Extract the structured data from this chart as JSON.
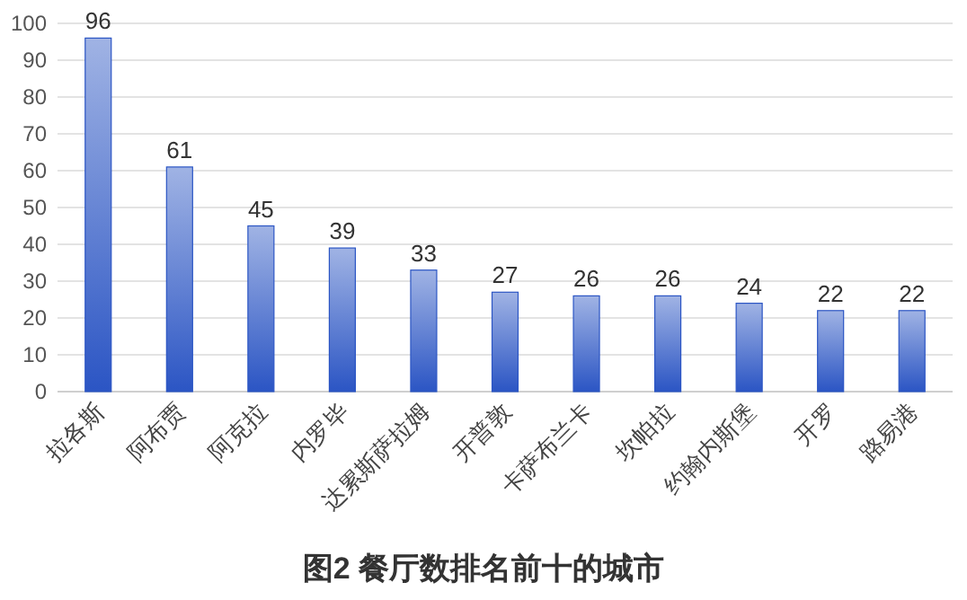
{
  "chart_data": {
    "type": "bar",
    "title": "图2 餐厅数排名前十的城市",
    "categories": [
      "拉各斯",
      "阿布贾",
      "阿克拉",
      "内罗毕",
      "达累斯萨拉姆",
      "开普敦",
      "卡萨布兰卡",
      "坎帕拉",
      "约翰内斯堡",
      "开罗",
      "路易港"
    ],
    "values": [
      96,
      61,
      45,
      39,
      33,
      27,
      26,
      26,
      24,
      22,
      22
    ],
    "color": "#2b55c4",
    "ylim": [
      0,
      100
    ],
    "yticks": [
      0,
      10,
      20,
      30,
      40,
      50,
      60,
      70,
      80,
      90,
      100
    ],
    "grid": "y",
    "data_labels": true
  }
}
